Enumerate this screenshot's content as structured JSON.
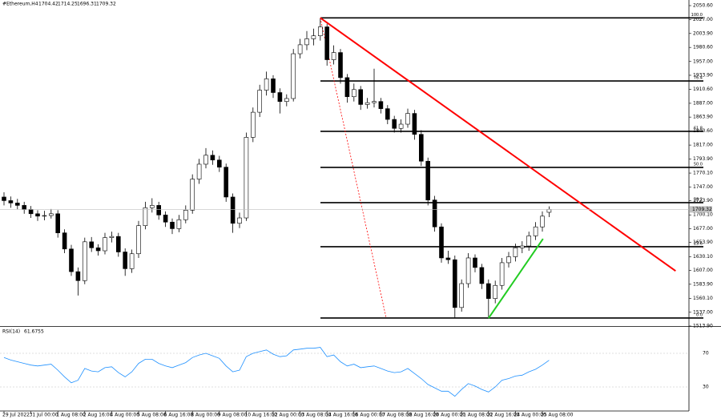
{
  "chart_data": {
    "type": "candlestick",
    "title": "#Ethereum,H4",
    "candles": [
      [
        1730,
        1738,
        1716,
        1724
      ],
      [
        1724,
        1731,
        1712,
        1720
      ],
      [
        1720,
        1727,
        1709,
        1716
      ],
      [
        1716,
        1722,
        1702,
        1709
      ],
      [
        1709,
        1715,
        1695,
        1702
      ],
      [
        1702,
        1708,
        1690,
        1698
      ],
      [
        1698,
        1707,
        1691,
        1699
      ],
      [
        1699,
        1710,
        1694,
        1702
      ],
      [
        1702,
        1708,
        1662,
        1670
      ],
      [
        1670,
        1676,
        1636,
        1643
      ],
      [
        1643,
        1650,
        1598,
        1605
      ],
      [
        1605,
        1612,
        1565,
        1590
      ],
      [
        1590,
        1662,
        1584,
        1655
      ],
      [
        1655,
        1663,
        1638,
        1645
      ],
      [
        1645,
        1651,
        1632,
        1640
      ],
      [
        1640,
        1670,
        1634,
        1662
      ],
      [
        1662,
        1672,
        1654,
        1664
      ],
      [
        1664,
        1670,
        1630,
        1638
      ],
      [
        1638,
        1644,
        1598,
        1610
      ],
      [
        1610,
        1642,
        1603,
        1635
      ],
      [
        1635,
        1690,
        1628,
        1682
      ],
      [
        1682,
        1722,
        1676,
        1712
      ],
      [
        1712,
        1728,
        1704,
        1716
      ],
      [
        1716,
        1722,
        1692,
        1700
      ],
      [
        1700,
        1706,
        1680,
        1688
      ],
      [
        1688,
        1694,
        1668,
        1677
      ],
      [
        1677,
        1700,
        1671,
        1692
      ],
      [
        1692,
        1716,
        1686,
        1708
      ],
      [
        1708,
        1768,
        1702,
        1760
      ],
      [
        1760,
        1794,
        1752,
        1785
      ],
      [
        1785,
        1812,
        1778,
        1800
      ],
      [
        1800,
        1808,
        1784,
        1792
      ],
      [
        1792,
        1799,
        1772,
        1780
      ],
      [
        1780,
        1786,
        1722,
        1730
      ],
      [
        1730,
        1736,
        1670,
        1686
      ],
      [
        1686,
        1704,
        1678,
        1695
      ],
      [
        1695,
        1838,
        1690,
        1830
      ],
      [
        1830,
        1880,
        1822,
        1872
      ],
      [
        1872,
        1918,
        1864,
        1909
      ],
      [
        1909,
        1940,
        1900,
        1928
      ],
      [
        1928,
        1934,
        1896,
        1905
      ],
      [
        1905,
        1912,
        1870,
        1890
      ],
      [
        1890,
        1902,
        1882,
        1895
      ],
      [
        1895,
        1978,
        1890,
        1970
      ],
      [
        1970,
        1995,
        1962,
        1985
      ],
      [
        1985,
        2008,
        1976,
        1995
      ],
      [
        1995,
        2012,
        1984,
        2000
      ],
      [
        2000,
        2030,
        1992,
        2015
      ],
      [
        2015,
        2020,
        1950,
        1960
      ],
      [
        1960,
        1984,
        1952,
        1972
      ],
      [
        1972,
        1978,
        1920,
        1930
      ],
      [
        1930,
        1936,
        1888,
        1898
      ],
      [
        1898,
        1920,
        1890,
        1910
      ],
      [
        1910,
        1916,
        1876,
        1885
      ],
      [
        1885,
        1896,
        1878,
        1888
      ],
      [
        1888,
        1945,
        1880,
        1890
      ],
      [
        1890,
        1896,
        1870,
        1878
      ],
      [
        1878,
        1884,
        1852,
        1860
      ],
      [
        1860,
        1866,
        1838,
        1845
      ],
      [
        1845,
        1860,
        1838,
        1852
      ],
      [
        1852,
        1878,
        1846,
        1870
      ],
      [
        1870,
        1876,
        1826,
        1835
      ],
      [
        1835,
        1842,
        1782,
        1790
      ],
      [
        1790,
        1796,
        1716,
        1725
      ],
      [
        1725,
        1732,
        1672,
        1680
      ],
      [
        1680,
        1686,
        1620,
        1628
      ],
      [
        1628,
        1640,
        1618,
        1625
      ],
      [
        1625,
        1632,
        1527,
        1545
      ],
      [
        1545,
        1592,
        1538,
        1585
      ],
      [
        1585,
        1636,
        1578,
        1628
      ],
      [
        1628,
        1634,
        1604,
        1612
      ],
      [
        1612,
        1618,
        1576,
        1585
      ],
      [
        1585,
        1592,
        1527,
        1560
      ],
      [
        1560,
        1590,
        1552,
        1582
      ],
      [
        1582,
        1628,
        1575,
        1620
      ],
      [
        1620,
        1638,
        1612,
        1630
      ],
      [
        1630,
        1652,
        1622,
        1645
      ],
      [
        1645,
        1656,
        1636,
        1648
      ],
      [
        1648,
        1672,
        1640,
        1665
      ],
      [
        1665,
        1688,
        1658,
        1680
      ],
      [
        1680,
        1706,
        1672,
        1698
      ],
      [
        1704.42,
        1714.25,
        1696.31,
        1709.32
      ]
    ],
    "ylim": [
      1513.9,
      2050.6
    ],
    "yticks": [
      {
        "value": 2050.6,
        "label": "2050.60"
      },
      {
        "value": 2027,
        "label": "2027.00"
      },
      {
        "value": 2003.9,
        "label": "2003.90"
      },
      {
        "value": 1980.6,
        "label": "1980.60"
      },
      {
        "value": 1957,
        "label": "1957.00"
      },
      {
        "value": 1933.9,
        "label": "1933.90"
      },
      {
        "value": 1910.6,
        "label": "1910.60"
      },
      {
        "value": 1887,
        "label": "1887.00"
      },
      {
        "value": 1863.9,
        "label": "1863.90"
      },
      {
        "value": 1840.6,
        "label": "1840.60"
      },
      {
        "value": 1817,
        "label": "1817.00"
      },
      {
        "value": 1793.9,
        "label": "1793.90"
      },
      {
        "value": 1770.1,
        "label": "1770.10"
      },
      {
        "value": 1747,
        "label": "1747.00"
      },
      {
        "value": 1723.9,
        "label": "1723.90"
      },
      {
        "value": 1700.1,
        "label": "1700.10"
      },
      {
        "value": 1677,
        "label": "1677.00"
      },
      {
        "value": 1653.9,
        "label": "1653.90"
      },
      {
        "value": 1630.1,
        "label": "1630.10"
      },
      {
        "value": 1607,
        "label": "1607.00"
      },
      {
        "value": 1583.9,
        "label": "1583.90"
      },
      {
        "value": 1560.1,
        "label": "1560.10"
      },
      {
        "value": 1537,
        "label": "1537.00"
      },
      {
        "value": 1513.9,
        "label": "1513.90"
      }
    ],
    "xticks": [
      {
        "value": 0,
        "label": "29 Jul 2022"
      },
      {
        "value": 4,
        "label": "31 Jul 00:00"
      },
      {
        "value": 8,
        "label": "1 Aug 08:00"
      },
      {
        "value": 12,
        "label": "2 Aug 16:00"
      },
      {
        "value": 16,
        "label": "4 Aug 00:00"
      },
      {
        "value": 20,
        "label": "5 Aug 08:00"
      },
      {
        "value": 24,
        "label": "6 Aug 16:00"
      },
      {
        "value": 28,
        "label": "8 Aug 00:00"
      },
      {
        "value": 32,
        "label": "9 Aug 08:00"
      },
      {
        "value": 36,
        "label": "10 Aug 16:00"
      },
      {
        "value": 40,
        "label": "12 Aug 00:00"
      },
      {
        "value": 44,
        "label": "13 Aug 08:00"
      },
      {
        "value": 48,
        "label": "14 Aug 16:00"
      },
      {
        "value": 52,
        "label": "16 Aug 00:00"
      },
      {
        "value": 56,
        "label": "17 Aug 08:00"
      },
      {
        "value": 60,
        "label": "18 Aug 16:00"
      },
      {
        "value": 64,
        "label": "20 Aug 00:00"
      },
      {
        "value": 68,
        "label": "21 Aug 08:00"
      },
      {
        "value": 72,
        "label": "22 Aug 16:00"
      },
      {
        "value": 76,
        "label": "24 Aug 00:00"
      },
      {
        "value": 80,
        "label": "25 Aug 08:00"
      }
    ],
    "fib_levels": [
      {
        "label": "100.0",
        "value": 2030
      },
      {
        "label": "76.4",
        "value": 1924.4
      },
      {
        "label": "61.8",
        "value": 1840
      },
      {
        "label": "50.0",
        "value": 1779.7
      },
      {
        "label": "38.2",
        "value": 1720.6
      },
      {
        "label": "23.6",
        "value": 1646.8
      },
      {
        "label": "0.0",
        "value": 1527.4
      }
    ],
    "trendlines": [
      {
        "color": "#ff0000",
        "from": [
          47,
          2030
        ],
        "to": [
          99.8,
          1606.3
        ]
      },
      {
        "color": "#22cc22",
        "from": [
          72,
          1527
        ],
        "to": [
          80.1,
          1660
        ]
      }
    ],
    "dotted_lines": [
      {
        "color": "#ff0000",
        "from": [
          47,
          2030
        ],
        "to": [
          56.8,
          1527
        ]
      }
    ],
    "rsi": {
      "name": "RSI(14)",
      "color": "#1e90ff",
      "ylim": [
        0,
        100
      ],
      "yticks": [
        30,
        70
      ],
      "values": [
        65,
        62,
        60,
        58,
        56,
        55,
        56,
        57,
        50,
        42,
        35,
        38,
        52,
        49,
        48,
        53,
        54,
        47,
        42,
        48,
        58,
        63,
        63,
        58,
        55,
        53,
        56,
        59,
        65,
        68,
        70,
        67,
        64,
        55,
        48,
        50,
        66,
        70,
        72,
        74,
        69,
        66,
        67,
        74,
        75,
        76,
        76,
        77,
        66,
        68,
        60,
        55,
        57,
        53,
        54,
        55,
        52,
        49,
        47,
        48,
        52,
        46,
        40,
        33,
        29,
        25,
        25,
        19,
        27,
        34,
        31,
        27,
        24,
        30,
        38,
        40,
        43,
        44,
        48,
        51,
        56,
        61.6755
      ]
    }
  }
}
